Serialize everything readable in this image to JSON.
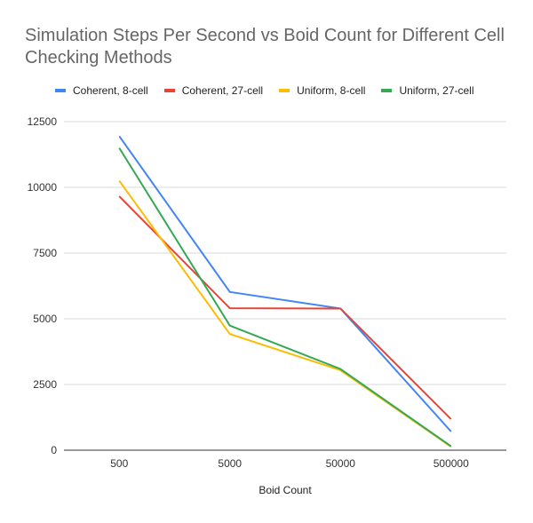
{
  "title": {
    "line1": "Simulation Steps Per Second vs Boid Count for Different Cell",
    "line2": "Checking Methods"
  },
  "colors": {
    "grid": "#d9d9d9",
    "axis": "#333333"
  },
  "chart_data": {
    "type": "line",
    "title": "Simulation Steps Per Second vs Boid Count for Different Cell Checking Methods",
    "xlabel": "Boid Count",
    "ylabel": "",
    "categories": [
      "500",
      "5000",
      "50000",
      "500000"
    ],
    "ylim": [
      0,
      12500
    ],
    "yticks": [
      "0",
      "2500",
      "5000",
      "7500",
      "10000",
      "12500"
    ],
    "grid": true,
    "legend_position": "top",
    "series": [
      {
        "name": "Coherent, 8-cell",
        "color": "#4285f4",
        "values": [
          11950,
          6020,
          5390,
          710
        ]
      },
      {
        "name": "Coherent, 27-cell",
        "color": "#ea4335",
        "values": [
          9660,
          5400,
          5390,
          1180
        ]
      },
      {
        "name": "Uniform, 8-cell",
        "color": "#fbbc04",
        "values": [
          10250,
          4420,
          3040,
          130
        ]
      },
      {
        "name": "Uniform, 27-cell",
        "color": "#34a853",
        "values": [
          11500,
          4740,
          3090,
          150
        ]
      }
    ]
  }
}
